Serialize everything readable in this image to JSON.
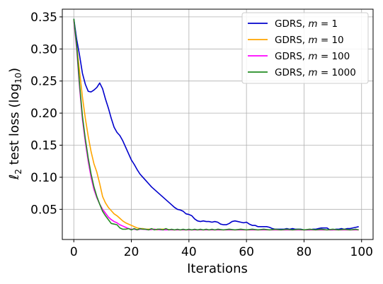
{
  "chart_data": {
    "type": "line",
    "xlabel": "Iterations",
    "ylabel": "ℓ2 test loss (log10)",
    "xlim": [
      -4,
      104
    ],
    "ylim": [
      0.003,
      0.362
    ],
    "xticks": [
      0,
      20,
      40,
      60,
      80,
      100
    ],
    "yticks": [
      0.05,
      0.1,
      0.15,
      0.2,
      0.25,
      0.3,
      0.35
    ],
    "ytick_labels": [
      "0.05",
      "0.10",
      "0.15",
      "0.20",
      "0.25",
      "0.30",
      "0.35"
    ],
    "grid": true,
    "legend_position": "top-right",
    "series": [
      {
        "name": "GDRS, m = 1",
        "legend_prefix": "GDRS, ",
        "legend_var": "m",
        "legend_eq": " = 1",
        "color": "#0000cc",
        "points": [
          [
            0,
            0.347
          ],
          [
            1,
            0.315
          ],
          [
            2,
            0.29
          ],
          [
            3,
            0.262
          ],
          [
            4,
            0.245
          ],
          [
            5,
            0.234
          ],
          [
            6,
            0.233
          ],
          [
            7,
            0.236
          ],
          [
            8,
            0.24
          ],
          [
            9,
            0.247
          ],
          [
            10,
            0.238
          ],
          [
            11,
            0.222
          ],
          [
            12,
            0.208
          ],
          [
            13,
            0.192
          ],
          [
            14,
            0.178
          ],
          [
            15,
            0.17
          ],
          [
            16,
            0.165
          ],
          [
            17,
            0.157
          ],
          [
            18,
            0.147
          ],
          [
            19,
            0.137
          ],
          [
            20,
            0.127
          ],
          [
            21,
            0.12
          ],
          [
            22,
            0.112
          ],
          [
            23,
            0.105
          ],
          [
            24,
            0.1
          ],
          [
            25,
            0.095
          ],
          [
            26,
            0.09
          ],
          [
            27,
            0.085
          ],
          [
            28,
            0.081
          ],
          [
            29,
            0.077
          ],
          [
            30,
            0.073
          ],
          [
            31,
            0.069
          ],
          [
            32,
            0.065
          ],
          [
            33,
            0.061
          ],
          [
            34,
            0.057
          ],
          [
            35,
            0.053
          ],
          [
            36,
            0.05
          ],
          [
            37,
            0.049
          ],
          [
            38,
            0.047
          ],
          [
            39,
            0.043
          ],
          [
            40,
            0.042
          ],
          [
            41,
            0.04
          ],
          [
            42,
            0.035
          ],
          [
            43,
            0.032
          ],
          [
            44,
            0.031
          ],
          [
            45,
            0.032
          ],
          [
            46,
            0.031
          ],
          [
            47,
            0.031
          ],
          [
            48,
            0.03
          ],
          [
            49,
            0.031
          ],
          [
            50,
            0.03
          ],
          [
            51,
            0.027
          ],
          [
            52,
            0.026
          ],
          [
            53,
            0.026
          ],
          [
            54,
            0.028
          ],
          [
            55,
            0.031
          ],
          [
            56,
            0.032
          ],
          [
            57,
            0.031
          ],
          [
            58,
            0.03
          ],
          [
            59,
            0.029
          ],
          [
            60,
            0.03
          ],
          [
            61,
            0.027
          ],
          [
            62,
            0.025
          ],
          [
            63,
            0.025
          ],
          [
            64,
            0.023
          ],
          [
            65,
            0.023
          ],
          [
            66,
            0.023
          ],
          [
            67,
            0.023
          ],
          [
            68,
            0.022
          ],
          [
            69,
            0.02
          ],
          [
            70,
            0.019
          ],
          [
            71,
            0.019
          ],
          [
            72,
            0.019
          ],
          [
            73,
            0.019
          ],
          [
            74,
            0.02
          ],
          [
            75,
            0.019
          ],
          [
            76,
            0.02
          ],
          [
            77,
            0.019
          ],
          [
            78,
            0.019
          ],
          [
            79,
            0.019
          ],
          [
            80,
            0.018
          ],
          [
            81,
            0.018
          ],
          [
            82,
            0.018
          ],
          [
            83,
            0.019
          ],
          [
            84,
            0.019
          ],
          [
            85,
            0.02
          ],
          [
            86,
            0.021
          ],
          [
            87,
            0.021
          ],
          [
            88,
            0.021
          ],
          [
            89,
            0.018
          ],
          [
            90,
            0.018
          ],
          [
            91,
            0.019
          ],
          [
            92,
            0.019
          ],
          [
            93,
            0.02
          ],
          [
            94,
            0.019
          ],
          [
            95,
            0.02
          ],
          [
            96,
            0.02
          ],
          [
            97,
            0.021
          ],
          [
            98,
            0.022
          ],
          [
            99,
            0.023
          ]
        ]
      },
      {
        "name": "GDRS, m = 10",
        "legend_prefix": "GDRS, ",
        "legend_var": "m",
        "legend_eq": " = 10",
        "color": "#ffa500",
        "points": [
          [
            0,
            0.345
          ],
          [
            1,
            0.305
          ],
          [
            2,
            0.265
          ],
          [
            3,
            0.225
          ],
          [
            4,
            0.192
          ],
          [
            5,
            0.164
          ],
          [
            6,
            0.14
          ],
          [
            7,
            0.121
          ],
          [
            8,
            0.108
          ],
          [
            9,
            0.09
          ],
          [
            10,
            0.07
          ],
          [
            11,
            0.06
          ],
          [
            12,
            0.053
          ],
          [
            13,
            0.048
          ],
          [
            14,
            0.043
          ],
          [
            15,
            0.04
          ],
          [
            16,
            0.036
          ],
          [
            17,
            0.032
          ],
          [
            18,
            0.029
          ],
          [
            19,
            0.027
          ],
          [
            20,
            0.025
          ],
          [
            21,
            0.023
          ],
          [
            22,
            0.021
          ],
          [
            23,
            0.02
          ],
          [
            24,
            0.02
          ],
          [
            25,
            0.019
          ],
          [
            26,
            0.019
          ],
          [
            27,
            0.019
          ],
          [
            28,
            0.019
          ],
          [
            29,
            0.018
          ],
          [
            30,
            0.019
          ],
          [
            32,
            0.019
          ],
          [
            34,
            0.018
          ],
          [
            36,
            0.018
          ],
          [
            38,
            0.018
          ],
          [
            40,
            0.018
          ],
          [
            45,
            0.018
          ],
          [
            50,
            0.018
          ],
          [
            55,
            0.018
          ],
          [
            60,
            0.018
          ],
          [
            65,
            0.018
          ],
          [
            70,
            0.018
          ],
          [
            75,
            0.018
          ],
          [
            80,
            0.018
          ],
          [
            85,
            0.018
          ],
          [
            90,
            0.018
          ],
          [
            95,
            0.018
          ],
          [
            99,
            0.018
          ]
        ]
      },
      {
        "name": "GDRS, m = 100",
        "legend_prefix": "GDRS, ",
        "legend_var": "m",
        "legend_eq": " = 100",
        "color": "#ff00ff",
        "points": [
          [
            0,
            0.344
          ],
          [
            1,
            0.3
          ],
          [
            2,
            0.24
          ],
          [
            3,
            0.19
          ],
          [
            4,
            0.155
          ],
          [
            5,
            0.125
          ],
          [
            6,
            0.1
          ],
          [
            7,
            0.081
          ],
          [
            8,
            0.068
          ],
          [
            9,
            0.058
          ],
          [
            10,
            0.05
          ],
          [
            11,
            0.044
          ],
          [
            12,
            0.038
          ],
          [
            13,
            0.034
          ],
          [
            14,
            0.031
          ],
          [
            15,
            0.029
          ],
          [
            16,
            0.026
          ],
          [
            17,
            0.024
          ],
          [
            18,
            0.022
          ],
          [
            19,
            0.02
          ],
          [
            20,
            0.019
          ],
          [
            21,
            0.019
          ],
          [
            22,
            0.018
          ],
          [
            23,
            0.019
          ],
          [
            24,
            0.019
          ],
          [
            26,
            0.018
          ],
          [
            28,
            0.019
          ],
          [
            30,
            0.018
          ],
          [
            35,
            0.018
          ],
          [
            40,
            0.018
          ],
          [
            45,
            0.018
          ],
          [
            50,
            0.018
          ],
          [
            55,
            0.018
          ],
          [
            60,
            0.018
          ],
          [
            65,
            0.018
          ],
          [
            70,
            0.018
          ],
          [
            75,
            0.018
          ],
          [
            80,
            0.018
          ],
          [
            85,
            0.018
          ],
          [
            90,
            0.018
          ],
          [
            95,
            0.018
          ],
          [
            99,
            0.018
          ]
        ]
      },
      {
        "name": "GDRS, m = 1000",
        "legend_prefix": "GDRS, ",
        "legend_var": "m",
        "legend_eq": " = 1000",
        "color": "#228b22",
        "points": [
          [
            0,
            0.347
          ],
          [
            1,
            0.305
          ],
          [
            2,
            0.245
          ],
          [
            3,
            0.195
          ],
          [
            4,
            0.16
          ],
          [
            5,
            0.13
          ],
          [
            6,
            0.105
          ],
          [
            7,
            0.085
          ],
          [
            8,
            0.07
          ],
          [
            9,
            0.058
          ],
          [
            10,
            0.047
          ],
          [
            11,
            0.04
          ],
          [
            12,
            0.034
          ],
          [
            13,
            0.028
          ],
          [
            14,
            0.027
          ],
          [
            15,
            0.026
          ],
          [
            16,
            0.021
          ],
          [
            17,
            0.019
          ],
          [
            18,
            0.019
          ],
          [
            19,
            0.02
          ],
          [
            20,
            0.018
          ],
          [
            21,
            0.02
          ],
          [
            22,
            0.018
          ],
          [
            23,
            0.02
          ],
          [
            24,
            0.019
          ],
          [
            25,
            0.019
          ],
          [
            26,
            0.018
          ],
          [
            27,
            0.02
          ],
          [
            28,
            0.018
          ],
          [
            29,
            0.019
          ],
          [
            30,
            0.019
          ],
          [
            31,
            0.018
          ],
          [
            32,
            0.02
          ],
          [
            33,
            0.018
          ],
          [
            34,
            0.019
          ],
          [
            35,
            0.018
          ],
          [
            36,
            0.019
          ],
          [
            37,
            0.018
          ],
          [
            38,
            0.019
          ],
          [
            39,
            0.018
          ],
          [
            40,
            0.019
          ],
          [
            41,
            0.018
          ],
          [
            42,
            0.019
          ],
          [
            43,
            0.018
          ],
          [
            44,
            0.019
          ],
          [
            45,
            0.018
          ],
          [
            46,
            0.019
          ],
          [
            47,
            0.018
          ],
          [
            48,
            0.019
          ],
          [
            49,
            0.018
          ],
          [
            50,
            0.019
          ],
          [
            52,
            0.018
          ],
          [
            54,
            0.019
          ],
          [
            56,
            0.018
          ],
          [
            58,
            0.019
          ],
          [
            60,
            0.018
          ],
          [
            62,
            0.019
          ],
          [
            64,
            0.018
          ],
          [
            66,
            0.019
          ],
          [
            68,
            0.018
          ],
          [
            70,
            0.019
          ],
          [
            72,
            0.018
          ],
          [
            74,
            0.019
          ],
          [
            76,
            0.018
          ],
          [
            78,
            0.019
          ],
          [
            80,
            0.018
          ],
          [
            82,
            0.019
          ],
          [
            84,
            0.018
          ],
          [
            86,
            0.019
          ],
          [
            88,
            0.018
          ],
          [
            90,
            0.019
          ],
          [
            92,
            0.018
          ],
          [
            94,
            0.019
          ],
          [
            96,
            0.018
          ],
          [
            98,
            0.019
          ],
          [
            99,
            0.018
          ]
        ]
      }
    ]
  }
}
